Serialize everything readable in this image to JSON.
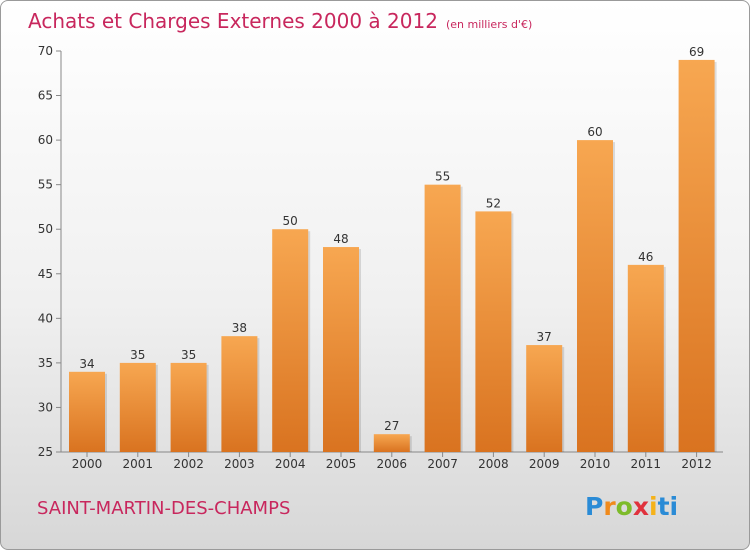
{
  "title": "Achats et Charges Externes 2000 à 2012",
  "subtitle": "(en milliers d'€)",
  "commune": "SAINT-MARTIN-DES-CHAMPS",
  "logo": {
    "text": "Proxiti",
    "parts": [
      "P",
      "r",
      "o",
      "x",
      "i",
      "ti"
    ]
  },
  "colors": {
    "title": "#c8275d",
    "bar_light": "#f7a751",
    "bar_dark": "#d97320",
    "axis": "#888888"
  },
  "chart_data": {
    "type": "bar",
    "categories": [
      "2000",
      "2001",
      "2002",
      "2003",
      "2004",
      "2005",
      "2006",
      "2007",
      "2008",
      "2009",
      "2010",
      "2011",
      "2012"
    ],
    "values": [
      34,
      35,
      35,
      38,
      50,
      48,
      27,
      55,
      52,
      37,
      60,
      46,
      69
    ],
    "ylim": [
      25,
      70
    ],
    "yticks": [
      25,
      30,
      35,
      40,
      45,
      50,
      55,
      60,
      65,
      70
    ],
    "grid": false,
    "data_labels": true
  }
}
